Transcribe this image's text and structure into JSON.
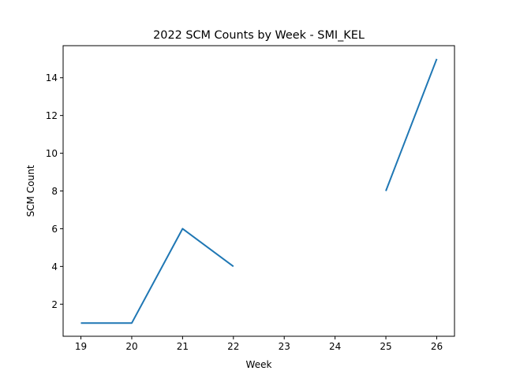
{
  "chart_data": {
    "type": "line",
    "title": "2022 SCM Counts by Week - SMI_KEL",
    "xlabel": "Week",
    "ylabel": "SCM Count",
    "xlim": [
      18.65,
      26.35
    ],
    "ylim": [
      0.3,
      15.7
    ],
    "xticks": [
      19,
      20,
      21,
      22,
      23,
      24,
      25,
      26
    ],
    "yticks": [
      2,
      4,
      6,
      8,
      10,
      12,
      14
    ],
    "grid": false,
    "series": [
      {
        "color": "#1f77b4",
        "points": [
          {
            "x": 19,
            "y": 1
          },
          {
            "x": 20,
            "y": 1
          },
          {
            "x": 21,
            "y": 6
          },
          {
            "x": 22,
            "y": 4
          },
          {
            "x": 23,
            "y": null
          },
          {
            "x": 24,
            "y": null
          },
          {
            "x": 25,
            "y": 8
          },
          {
            "x": 26,
            "y": 15
          }
        ]
      }
    ]
  }
}
